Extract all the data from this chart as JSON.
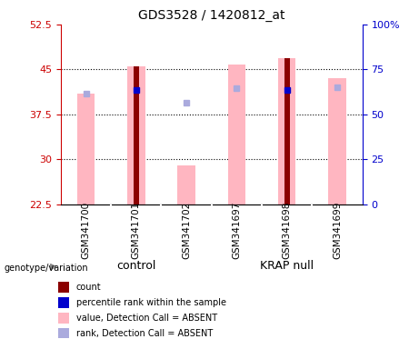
{
  "title": "GDS3528 / 1420812_at",
  "samples": [
    "GSM341700",
    "GSM341701",
    "GSM341702",
    "GSM341697",
    "GSM341698",
    "GSM341699"
  ],
  "group_labels": [
    "control",
    "KRAP null"
  ],
  "ylim_left": [
    22.5,
    52.5
  ],
  "ylim_right": [
    0,
    100
  ],
  "yticks_left": [
    22.5,
    30,
    37.5,
    45,
    52.5
  ],
  "yticks_right": [
    0,
    25,
    50,
    75,
    100
  ],
  "ytick_labels_left": [
    "22.5",
    "30",
    "37.5",
    "45",
    "52.5"
  ],
  "ytick_labels_right": [
    "0",
    "25",
    "50",
    "75",
    "100%"
  ],
  "pink_bar_values": [
    41.0,
    45.5,
    29.0,
    45.8,
    46.8,
    43.5
  ],
  "dark_red_bar_values": [
    null,
    45.5,
    null,
    null,
    46.8,
    null
  ],
  "blue_square_values": [
    null,
    41.5,
    null,
    null,
    41.5,
    null
  ],
  "light_blue_square_values": [
    41.0,
    null,
    39.5,
    41.8,
    null,
    42.0
  ],
  "pink_bar_color": "#FFB6C1",
  "dark_red_color": "#8B0000",
  "blue_color": "#0000CC",
  "light_blue_color": "#AAAADD",
  "left_axis_color": "#CC0000",
  "right_axis_color": "#0000CC",
  "plot_bg_color": "#FFFFFF",
  "sample_area_color": "#C8C8C8",
  "group_area_color": "#77DD77",
  "grid_ticks": [
    30,
    37.5,
    45
  ],
  "legend_items": [
    {
      "color": "#8B0000",
      "label": "count"
    },
    {
      "color": "#0000CC",
      "label": "percentile rank within the sample"
    },
    {
      "color": "#FFB6C1",
      "label": "value, Detection Call = ABSENT"
    },
    {
      "color": "#AAAADD",
      "label": "rank, Detection Call = ABSENT"
    }
  ]
}
